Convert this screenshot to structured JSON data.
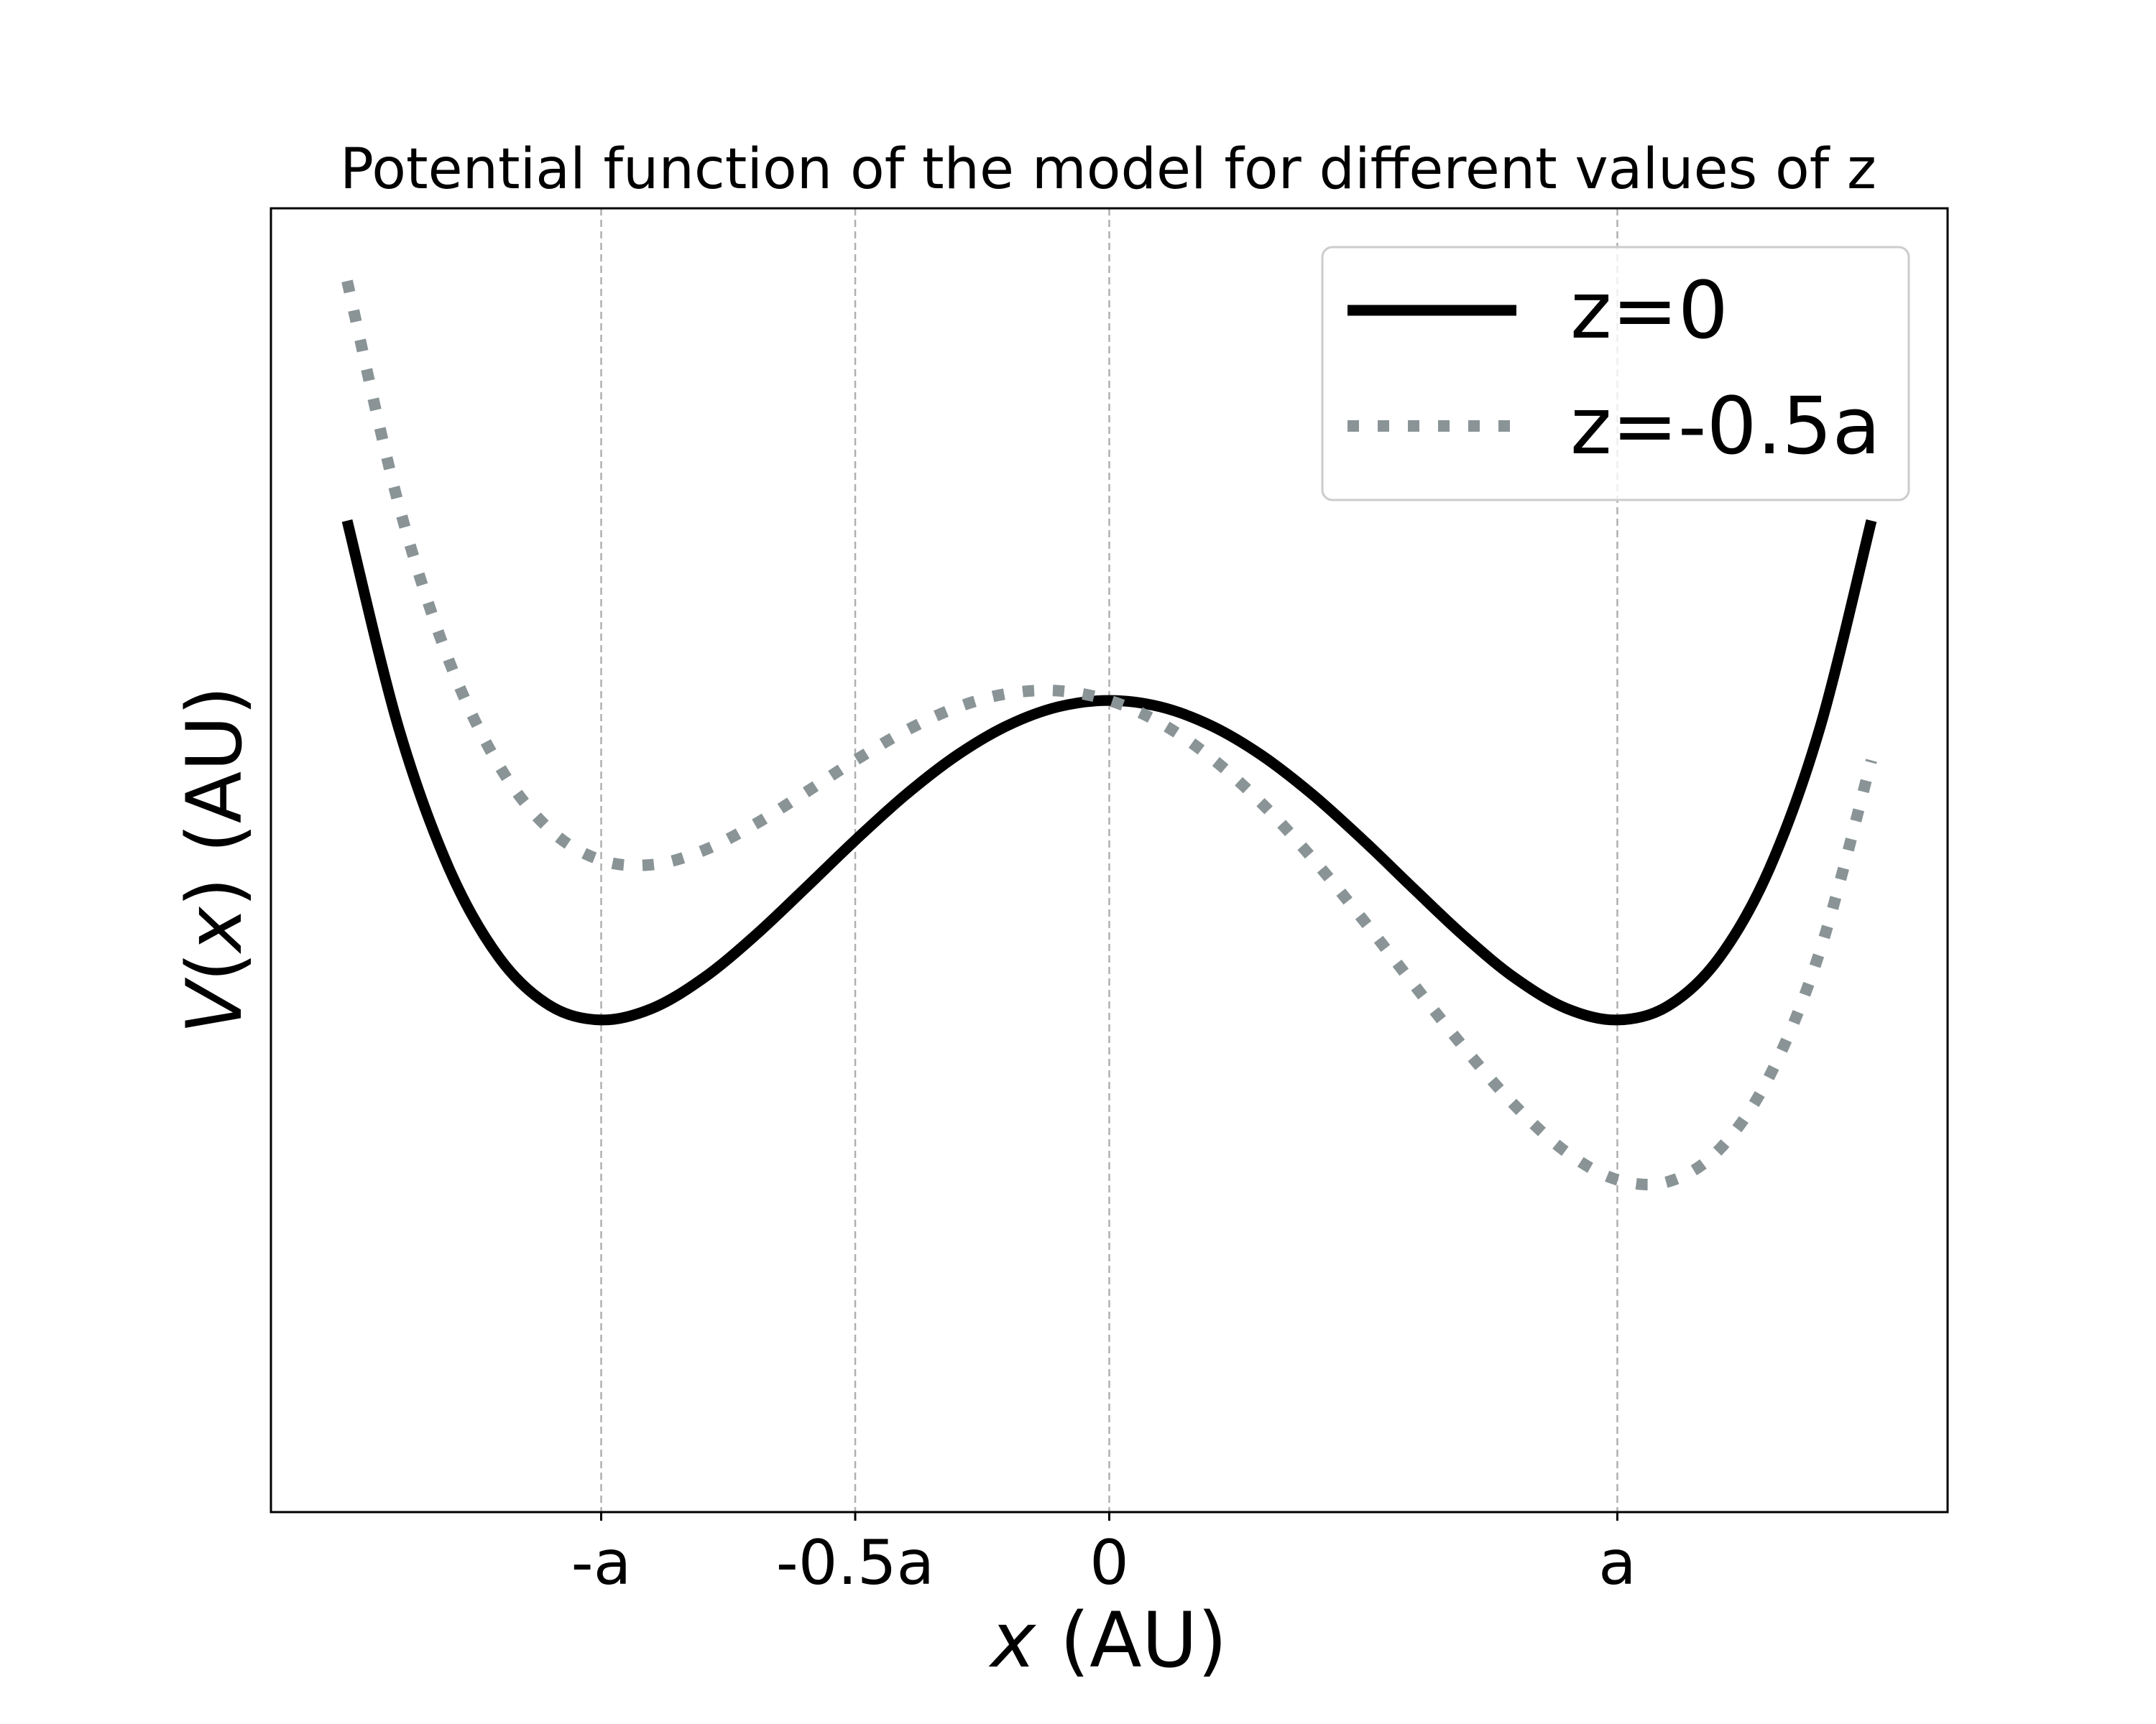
{
  "chart_data": {
    "type": "line",
    "title": "Potential function of the model for different values of z",
    "xlabel_var": "x",
    "xlabel_unit": " (AU)",
    "ylabel_func": "V",
    "ylabel_open": "(",
    "ylabel_var": "x",
    "ylabel_close": ")",
    "ylabel_unit": " (AU)",
    "xlim": [
      -1.65,
      1.65
    ],
    "ylim": [
      -1.54,
      2.54
    ],
    "y_ticks_shown": false,
    "grid": "vertical dashed lines at x ticks",
    "legend_position": "upper right",
    "x_ticks": [
      {
        "value": -1,
        "label": "-a"
      },
      {
        "value": -0.5,
        "label": "-0.5a"
      },
      {
        "value": 0,
        "label": "0"
      },
      {
        "value": 1,
        "label": "a"
      }
    ],
    "series": [
      {
        "name": "z=0",
        "style": "solid",
        "color": "#000000",
        "x": [
          -1.5,
          -1.4,
          -1.3,
          -1.2,
          -1.1,
          -1.0,
          -0.9,
          -0.8,
          -0.7,
          -0.6,
          -0.5,
          -0.4,
          -0.3,
          -0.2,
          -0.1,
          0.0,
          0.1,
          0.2,
          0.3,
          0.4,
          0.5,
          0.6,
          0.7,
          0.8,
          0.9,
          1.0,
          1.1,
          1.2,
          1.3,
          1.4,
          1.5
        ],
        "y": [
          1.5625,
          0.9216,
          0.4761,
          0.1936,
          0.0441,
          0.0,
          0.0361,
          0.1296,
          0.2601,
          0.4096,
          0.5625,
          0.7056,
          0.8281,
          0.9216,
          0.9801,
          1.0,
          0.9801,
          0.9216,
          0.8281,
          0.7056,
          0.5625,
          0.4096,
          0.2601,
          0.1296,
          0.0361,
          0.0,
          0.0441,
          0.1936,
          0.4761,
          0.9216,
          1.5625
        ]
      },
      {
        "name": "z=-0.5a",
        "style": "dotted",
        "color": "#8a9497",
        "x": [
          -1.5,
          -1.4,
          -1.3,
          -1.2,
          -1.1,
          -1.0,
          -0.9,
          -0.8,
          -0.7,
          -0.6,
          -0.5,
          -0.4,
          -0.3,
          -0.2,
          -0.1,
          0.0,
          0.1,
          0.2,
          0.3,
          0.4,
          0.5,
          0.6,
          0.7,
          0.8,
          0.9,
          1.0,
          1.1,
          1.2,
          1.3,
          1.4,
          1.5
        ],
        "y": [
          2.3125,
          1.6216,
          1.1261,
          0.7936,
          0.5941,
          0.5,
          0.4861,
          0.5296,
          0.6101,
          0.7096,
          0.8125,
          0.9056,
          0.9781,
          1.0216,
          1.0301,
          1.0,
          0.9301,
          0.8216,
          0.6781,
          0.5056,
          0.3125,
          0.1096,
          -0.0899,
          -0.2704,
          -0.4139,
          -0.5,
          -0.5059,
          -0.4064,
          -0.1739,
          0.2216,
          0.8125
        ]
      }
    ]
  }
}
